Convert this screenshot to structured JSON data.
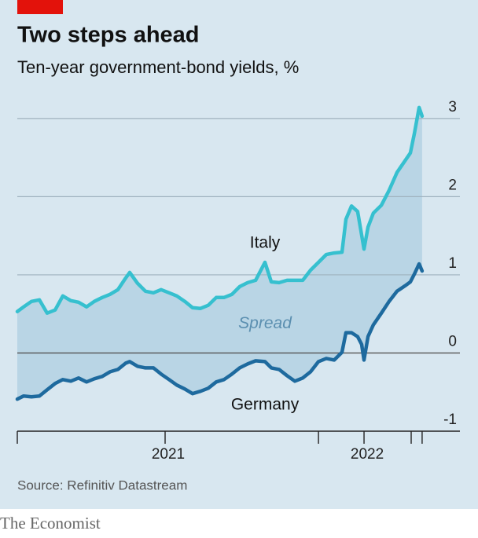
{
  "chart_data": {
    "type": "line",
    "title": "Two steps ahead",
    "subtitle": "Ten-year government-bond yields, %",
    "source": "Source: Refinitiv Datastream",
    "brand": "The Economist",
    "annotations": [
      {
        "text": "Italy",
        "x": 2021.502,
        "y": 1.4
      },
      {
        "text": "Spread",
        "x": 2021.502,
        "y": 0.37
      },
      {
        "text": "Germany",
        "x": 2021.502,
        "y": -0.67
      }
    ],
    "x": [
      2020.257,
      2020.289,
      2020.328,
      2020.368,
      2020.407,
      2020.447,
      2020.486,
      2020.526,
      2020.565,
      2020.605,
      2020.644,
      2020.684,
      2020.723,
      2020.763,
      2020.802,
      2020.822,
      2020.862,
      2020.901,
      2020.941,
      2020.98,
      2021.02,
      2021.059,
      2021.099,
      2021.138,
      2021.178,
      2021.217,
      2021.257,
      2021.296,
      2021.336,
      2021.375,
      2021.415,
      2021.455,
      2021.502,
      2021.534,
      2021.573,
      2021.613,
      2021.652,
      2021.692,
      2021.731,
      2021.771,
      2021.81,
      2021.85,
      2021.889,
      2021.909,
      2021.937,
      2021.968,
      2021.988,
      2022.0,
      2022.02,
      2022.047,
      2022.087,
      2022.126,
      2022.166,
      2022.206,
      2022.233,
      2022.253,
      2022.277,
      2022.292
    ],
    "series": [
      {
        "name": "Italy",
        "color": "#36c0cf",
        "values": [
          0.53,
          0.59,
          0.66,
          0.68,
          0.51,
          0.55,
          0.73,
          0.67,
          0.65,
          0.59,
          0.66,
          0.71,
          0.75,
          0.81,
          0.96,
          1.03,
          0.89,
          0.79,
          0.77,
          0.81,
          0.77,
          0.73,
          0.66,
          0.58,
          0.57,
          0.61,
          0.71,
          0.71,
          0.75,
          0.85,
          0.9,
          0.93,
          1.16,
          0.91,
          0.9,
          0.93,
          0.93,
          0.93,
          1.06,
          1.16,
          1.26,
          1.28,
          1.29,
          1.71,
          1.88,
          1.81,
          1.51,
          1.33,
          1.61,
          1.79,
          1.89,
          2.08,
          2.31,
          2.46,
          2.56,
          2.81,
          3.14,
          3.03
        ]
      },
      {
        "name": "Germany",
        "color": "#1e6a9e",
        "values": [
          -0.59,
          -0.55,
          -0.56,
          -0.55,
          -0.47,
          -0.39,
          -0.34,
          -0.36,
          -0.32,
          -0.37,
          -0.33,
          -0.3,
          -0.24,
          -0.21,
          -0.13,
          -0.11,
          -0.17,
          -0.19,
          -0.19,
          -0.27,
          -0.34,
          -0.41,
          -0.46,
          -0.52,
          -0.49,
          -0.45,
          -0.37,
          -0.34,
          -0.27,
          -0.19,
          -0.14,
          -0.1,
          -0.11,
          -0.19,
          -0.21,
          -0.29,
          -0.36,
          -0.32,
          -0.24,
          -0.11,
          -0.07,
          -0.09,
          0.01,
          0.26,
          0.26,
          0.21,
          0.11,
          -0.09,
          0.21,
          0.36,
          0.51,
          0.66,
          0.79,
          0.86,
          0.91,
          1.01,
          1.14,
          1.05
        ]
      }
    ],
    "fill_between": {
      "color": "#b9d5e5"
    },
    "xlim": [
      2020.257,
      2022.482
    ],
    "xticks": [
      {
        "value": 2021,
        "label": "2021"
      },
      {
        "value": 2022,
        "label": "2022"
      }
    ],
    "xminorticks": [
      2020.257,
      2021.771,
      2022.237,
      2022.292
    ],
    "ylim": [
      -1,
      3.3
    ],
    "yticks": [
      -1,
      0,
      1,
      2,
      3
    ],
    "grid": true,
    "background": "#d8e7f0"
  }
}
